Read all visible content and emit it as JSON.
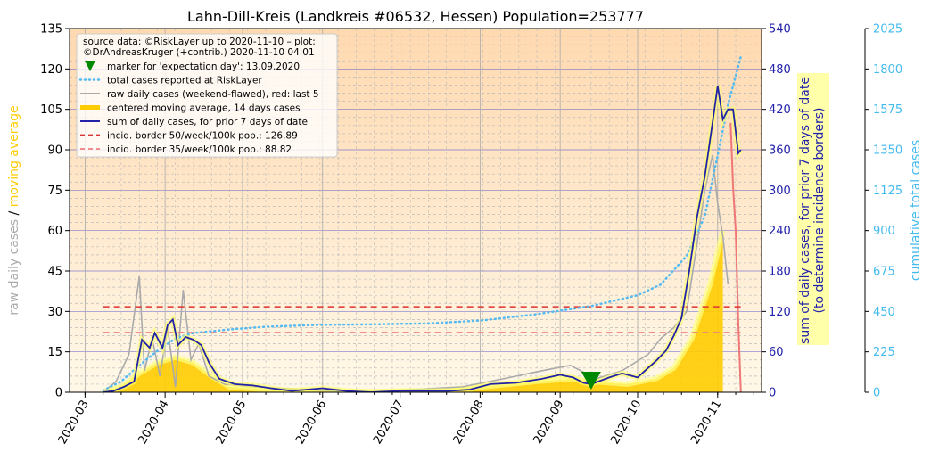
{
  "chart_data": {
    "type": "line",
    "title": "Lahn-Dill-Kreis (Landkreis #06532, Hessen) Population=253777",
    "source_lines": [
      "source data: ©RiskLayer up to 2020-11-10 – plot:",
      "©DrAndreasKruger (+contrib.) 2020-11-10 04:01"
    ],
    "ylabel_left_part1": "raw daily cases",
    "ylabel_left_sep": "/",
    "ylabel_left_part2": "moving average",
    "ylabel_right1_line1": "sum of daily cases, for prior 7 days of date",
    "ylabel_right1_line2": "(to determine incidence borders)",
    "ylabel_right2": "cumulative total cases",
    "yticks_left": [
      "0",
      "15",
      "30",
      "45",
      "60",
      "75",
      "90",
      "105",
      "120",
      "135"
    ],
    "yticks_right1": [
      "0",
      "60",
      "120",
      "180",
      "240",
      "300",
      "360",
      "420",
      "480",
      "540"
    ],
    "yticks_right2": [
      "0",
      "225",
      "450",
      "675",
      "900",
      "1125",
      "1350",
      "1575",
      "1800",
      "2025"
    ],
    "xticks": [
      "2020-03",
      "2020-04",
      "2020-05",
      "2020-06",
      "2020-07",
      "2020-08",
      "2020-09",
      "2020-10",
      "2020-11"
    ],
    "ylim_left": [
      0,
      135
    ],
    "ylim_right1": [
      0,
      540
    ],
    "ylim_right2": [
      0,
      2025
    ],
    "xlim": [
      "2020-02-24",
      "2020-11-18"
    ],
    "legend": [
      {
        "label": "marker for 'expectation day': 13.09.2020",
        "style": "marker",
        "color": "#008800"
      },
      {
        "label": "total cases reported at RiskLayer",
        "style": "dotted",
        "color": "#55bbf0"
      },
      {
        "label": "raw daily cases (weekend-flawed), red: last 5",
        "style": "line",
        "color": "#aaaaaa"
      },
      {
        "label": "centered moving average, 14 days cases",
        "style": "thick",
        "color": "#ffcc00"
      },
      {
        "label": "sum of daily cases, for prior 7 days of date",
        "style": "line",
        "color": "#2222aa"
      },
      {
        "label": "incid. border 50/week/100k pop.: 126.89",
        "style": "dashed",
        "color": "#dd3333"
      },
      {
        "label": "incid. border 35/week/100k pop.: 88.82",
        "style": "dashed",
        "color": "#f08080"
      }
    ],
    "legend_position": "top-left",
    "expectation_day": "2020-09-13",
    "incidence_border_50": 126.89,
    "incidence_border_35": 88.82,
    "series": [
      {
        "name": "sum of daily cases, for prior 7 days of date",
        "axis": "right1",
        "x": [
          "2020-03-08",
          "2020-03-12",
          "2020-03-16",
          "2020-03-20",
          "2020-03-23",
          "2020-03-26",
          "2020-03-28",
          "2020-03-31",
          "2020-04-02",
          "2020-04-04",
          "2020-04-06",
          "2020-04-09",
          "2020-04-12",
          "2020-04-15",
          "2020-04-18",
          "2020-04-22",
          "2020-04-28",
          "2020-05-05",
          "2020-05-12",
          "2020-05-20",
          "2020-06-01",
          "2020-06-10",
          "2020-06-20",
          "2020-07-01",
          "2020-07-10",
          "2020-07-20",
          "2020-07-28",
          "2020-08-05",
          "2020-08-15",
          "2020-08-25",
          "2020-09-01",
          "2020-09-06",
          "2020-09-10",
          "2020-09-13",
          "2020-09-20",
          "2020-09-25",
          "2020-10-01",
          "2020-10-05",
          "2020-10-08",
          "2020-10-12",
          "2020-10-15",
          "2020-10-18",
          "2020-10-21",
          "2020-10-24",
          "2020-10-27",
          "2020-10-30",
          "2020-11-01",
          "2020-11-03",
          "2020-11-05",
          "2020-11-07",
          "2020-11-09",
          "2020-11-10"
        ],
        "values": [
          0,
          2,
          8,
          16,
          78,
          66,
          88,
          66,
          100,
          108,
          70,
          82,
          78,
          70,
          44,
          20,
          12,
          10,
          6,
          2,
          6,
          2,
          0,
          2,
          2,
          2,
          4,
          12,
          14,
          20,
          26,
          22,
          14,
          12,
          22,
          28,
          22,
          36,
          46,
          62,
          84,
          110,
          180,
          260,
          320,
          400,
          455,
          405,
          420,
          420,
          355,
          360
        ]
      },
      {
        "name": "total cases reported at RiskLayer",
        "axis": "right2",
        "x": [
          "2020-03-08",
          "2020-03-15",
          "2020-03-22",
          "2020-03-29",
          "2020-04-05",
          "2020-04-12",
          "2020-04-19",
          "2020-04-26",
          "2020-05-10",
          "2020-05-31",
          "2020-06-21",
          "2020-07-12",
          "2020-08-02",
          "2020-08-23",
          "2020-09-13",
          "2020-10-01",
          "2020-10-10",
          "2020-10-20",
          "2020-10-27",
          "2020-11-01",
          "2020-11-05",
          "2020-11-10"
        ],
        "values": [
          10,
          60,
          150,
          230,
          300,
          330,
          340,
          350,
          365,
          375,
          378,
          383,
          400,
          435,
          480,
          540,
          600,
          760,
          980,
          1320,
          1600,
          1870
        ]
      },
      {
        "name": "centered moving average, 14 days cases",
        "axis": "left",
        "x": [
          "2020-03-08",
          "2020-03-15",
          "2020-03-22",
          "2020-03-29",
          "2020-04-05",
          "2020-04-12",
          "2020-04-19",
          "2020-04-26",
          "2020-05-10",
          "2020-05-31",
          "2020-06-21",
          "2020-07-12",
          "2020-08-02",
          "2020-08-23",
          "2020-09-06",
          "2020-09-13",
          "2020-09-27",
          "2020-10-08",
          "2020-10-15",
          "2020-10-22",
          "2020-10-29",
          "2020-11-03"
        ],
        "values": [
          0.3,
          2,
          7,
          11,
          13,
          11,
          6,
          2,
          1,
          0.5,
          0.3,
          0.5,
          2,
          4,
          5,
          4,
          3,
          5,
          9,
          20,
          40,
          60
        ]
      },
      {
        "name": "raw daily cases (weekend-flawed), red: last 5",
        "axis": "left",
        "x": [
          "2020-03-08",
          "2020-03-13",
          "2020-03-18",
          "2020-03-22",
          "2020-03-24",
          "2020-03-27",
          "2020-03-30",
          "2020-04-02",
          "2020-04-05",
          "2020-04-08",
          "2020-04-11",
          "2020-04-14",
          "2020-04-18",
          "2020-04-24",
          "2020-05-05",
          "2020-05-25",
          "2020-06-15",
          "2020-07-05",
          "2020-07-25",
          "2020-08-10",
          "2020-08-25",
          "2020-09-05",
          "2020-09-15",
          "2020-09-25",
          "2020-10-05",
          "2020-10-10",
          "2020-10-15",
          "2020-10-20",
          "2020-10-24",
          "2020-10-27",
          "2020-10-30",
          "2020-11-01",
          "2020-11-03",
          "2020-11-05"
        ],
        "values": [
          0,
          4,
          14,
          43,
          8,
          20,
          6,
          24,
          2,
          38,
          12,
          18,
          6,
          3,
          2,
          1,
          0,
          1,
          2,
          5,
          8,
          10,
          5,
          8,
          14,
          20,
          24,
          30,
          55,
          75,
          88,
          70,
          58,
          40
        ]
      },
      {
        "name": "raw daily cases, last 5",
        "axis": "left",
        "x": [
          "2020-11-06",
          "2020-11-07",
          "2020-11-08",
          "2020-11-09",
          "2020-11-10"
        ],
        "values": [
          100,
          76,
          60,
          26,
          0
        ]
      }
    ]
  }
}
